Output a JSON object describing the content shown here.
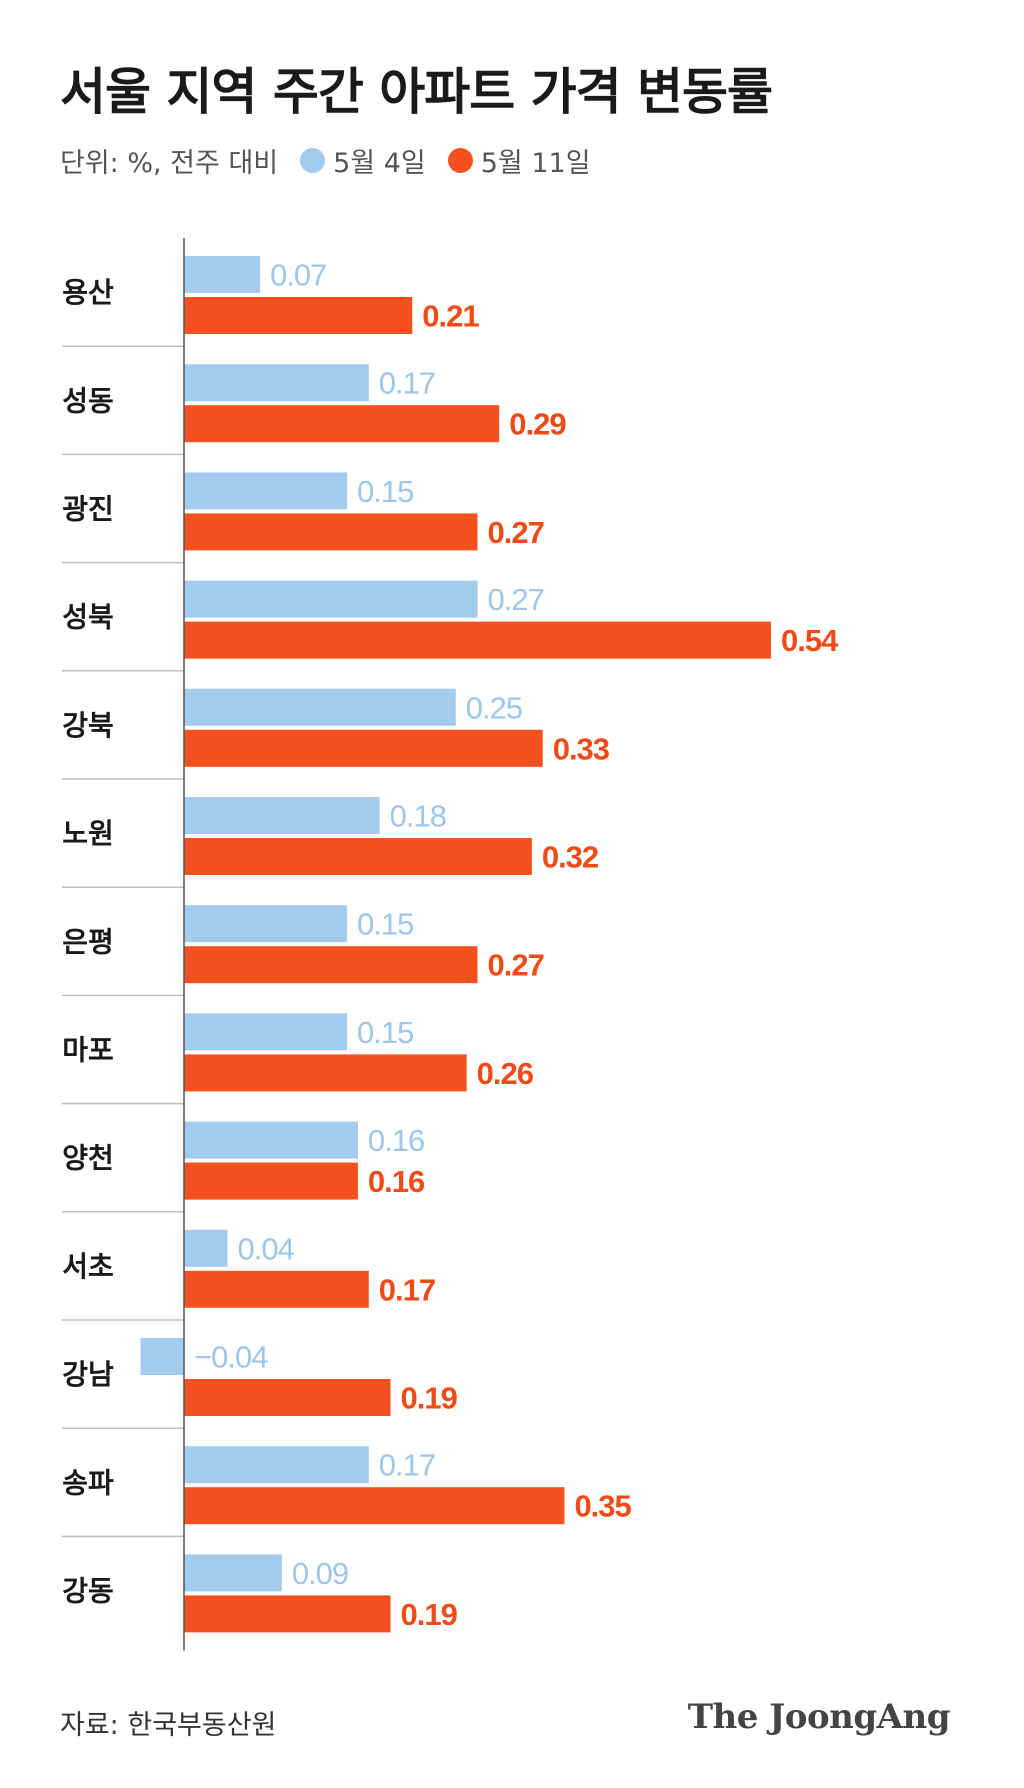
{
  "chart_data": {
    "type": "bar",
    "orientation": "horizontal",
    "title": "서울 지역 주간 아파트 가격 변동률",
    "subtitle": "단위: %, 전주 대비",
    "categories": [
      "용산",
      "성동",
      "광진",
      "성북",
      "강북",
      "노원",
      "은평",
      "마포",
      "양천",
      "서초",
      "강남",
      "송파",
      "강동"
    ],
    "series": [
      {
        "name": "5월 4일",
        "color": "#a3cbed",
        "values": [
          0.07,
          0.17,
          0.15,
          0.27,
          0.25,
          0.18,
          0.15,
          0.15,
          0.16,
          0.04,
          -0.04,
          0.17,
          0.09
        ],
        "labels": [
          "0.07",
          "0.17",
          "0.15",
          "0.27",
          "0.25",
          "0.18",
          "0.15",
          "0.15",
          "0.16",
          "0.04",
          "−0.04",
          "0.17",
          "0.09"
        ]
      },
      {
        "name": "5월 11일",
        "color": "#f5511e",
        "values": [
          0.21,
          0.29,
          0.27,
          0.54,
          0.33,
          0.32,
          0.27,
          0.26,
          0.16,
          0.17,
          0.19,
          0.35,
          0.19
        ],
        "labels": [
          "0.21",
          "0.29",
          "0.27",
          "0.54",
          "0.33",
          "0.32",
          "0.27",
          "0.26",
          "0.16",
          "0.17",
          "0.19",
          "0.35",
          "0.19"
        ]
      }
    ],
    "xlim": [
      -0.04,
      0.54
    ],
    "grid": false,
    "legend": "top-left"
  },
  "footer": {
    "source": "자료: 한국부동산원",
    "logo": "The JoongAng"
  }
}
